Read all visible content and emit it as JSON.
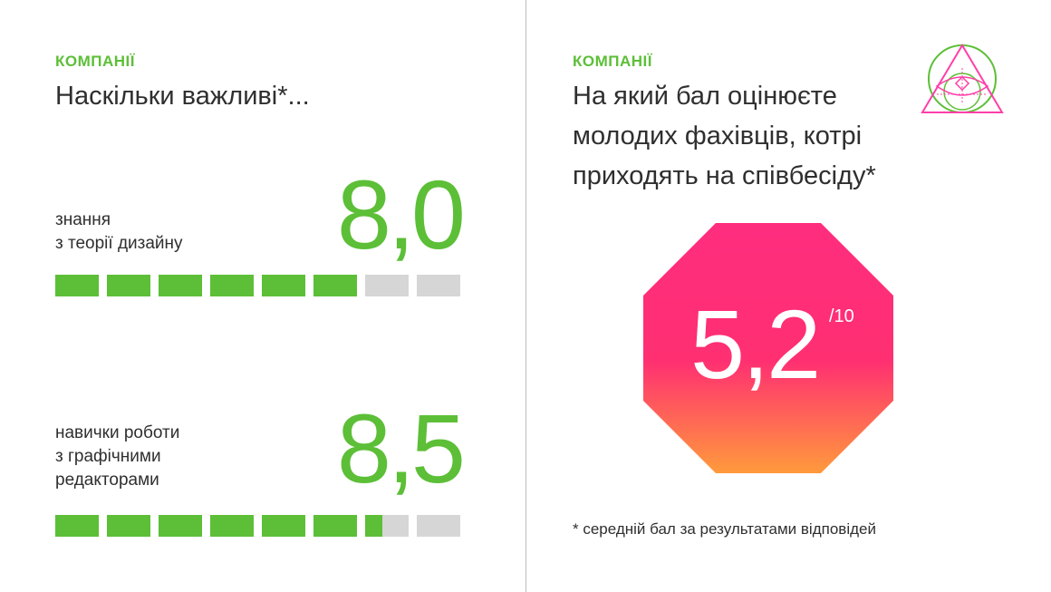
{
  "left": {
    "section_label": "КОМПАНІЇ",
    "heading": "Наскільки важливі*...",
    "metrics": [
      {
        "label_line1": "знання",
        "label_line2": "з теорії дизайну",
        "label_line3": "",
        "value": "8,0",
        "bar_fraction": 0.75
      },
      {
        "label_line1": "навички роботи",
        "label_line2": "з графічними",
        "label_line3": "редакторами",
        "value": "8,5",
        "bar_fraction": 0.8
      }
    ]
  },
  "right": {
    "section_label": "КОМПАНІЇ",
    "heading_line1": "На який бал оцінюєте",
    "heading_line2": "молодих фахівців, котрі",
    "heading_line3": "приходять на співбесіду*",
    "score": "5,2",
    "score_scale": "/10",
    "footnote": "* середній бал за результатами відповідей"
  },
  "colors": {
    "accent_green": "#5cbf37",
    "bar_empty": "#d6d6d6",
    "octagon_top": "#ff2d7e",
    "octagon_bottom": "#ff9a3c",
    "logo_green": "#5cbf37",
    "logo_pink": "#ff3fa8"
  },
  "icons": {
    "logo": "triangle-circle-eye-logo"
  }
}
